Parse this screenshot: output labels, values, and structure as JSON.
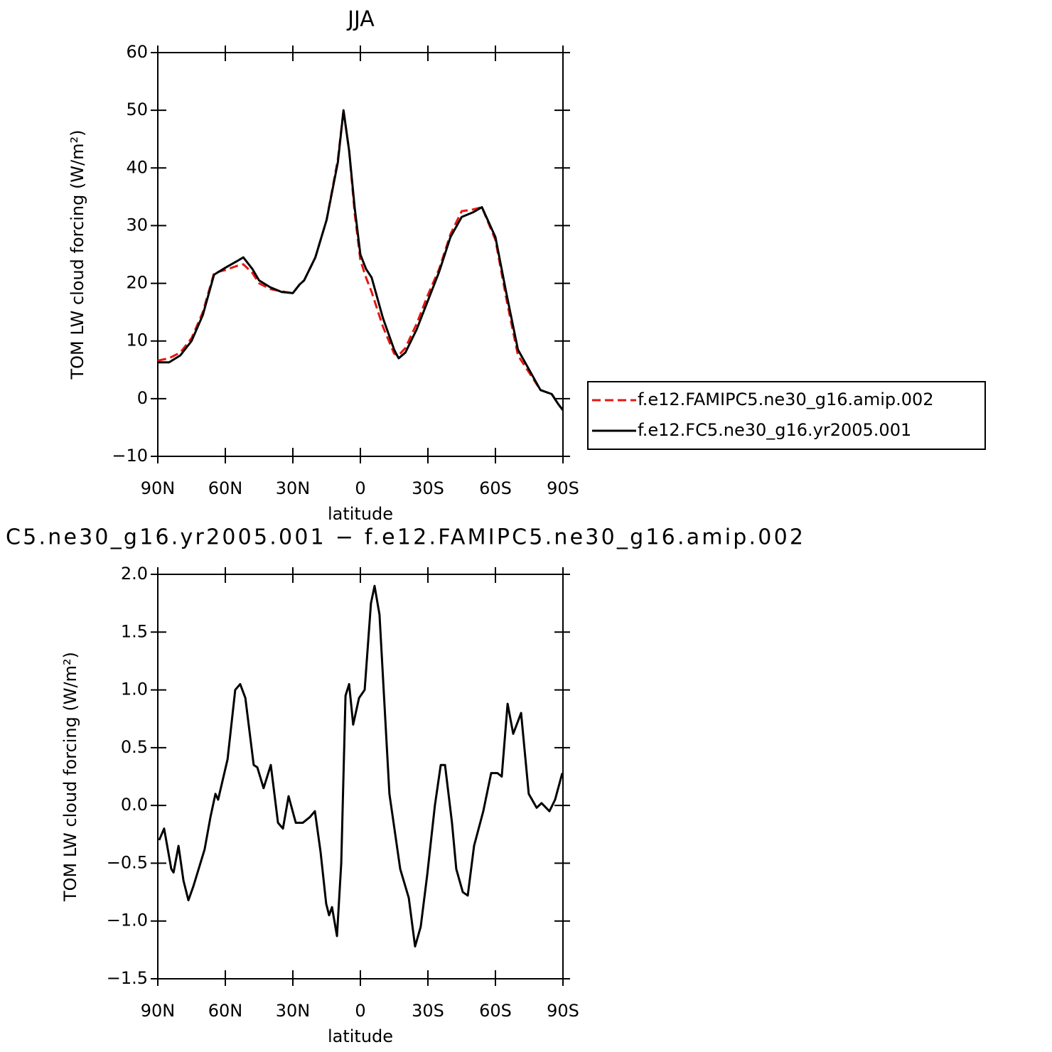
{
  "chart_data": [
    {
      "type": "line",
      "title": "JJA",
      "x_label": "latitude",
      "y_label": "TOM LW cloud forcing (W/m²)",
      "xlim": [
        90,
        -90
      ],
      "xticks": [
        {
          "value": 90,
          "label": "90N"
        },
        {
          "value": 60,
          "label": "60N"
        },
        {
          "value": 30,
          "label": "30N"
        },
        0,
        {
          "value": -30,
          "label": "30S"
        },
        {
          "value": -60,
          "label": "60S"
        },
        {
          "value": -90,
          "label": "90S"
        }
      ],
      "ylim": [
        -10,
        60
      ],
      "yticks": [
        {
          "value": -10,
          "label": "−10"
        },
        0,
        10,
        20,
        30,
        40,
        50,
        60
      ],
      "legend": "right",
      "x": [
        90,
        85,
        80,
        75,
        70,
        65,
        60,
        55,
        52,
        48,
        45,
        40,
        35,
        30,
        27,
        25,
        20,
        15,
        10,
        7.5,
        5,
        2.5,
        0,
        -2.5,
        -5,
        -10,
        -15,
        -17,
        -20,
        -25,
        -30,
        -35,
        -40,
        -45,
        -50,
        -54,
        -60,
        -65,
        -70,
        -75,
        -80,
        -85,
        -88,
        -90
      ],
      "series": [
        {
          "name": "f.e12.FAMIPC5.ne30_g16.amip.002",
          "color": "#e8150f",
          "linestyle": "dashed",
          "values": [
            6.6,
            7,
            8,
            10.5,
            15,
            21.8,
            22.3,
            23,
            23.3,
            21.8,
            20,
            19,
            18.6,
            18.3,
            19.8,
            20.5,
            24.5,
            31,
            41.5,
            50,
            43,
            32,
            24,
            21,
            18.5,
            12.5,
            7.8,
            7.5,
            8.8,
            13,
            18,
            22.5,
            28.5,
            32.5,
            32.8,
            33.2,
            27.5,
            17,
            7.5,
            4.5,
            1.5,
            0.8,
            -1,
            -2
          ]
        },
        {
          "name": "f.e12.FC5.ne30_g16.yr2005.001",
          "color": "#000000",
          "linestyle": "solid",
          "values": [
            6.3,
            6.3,
            7.5,
            10,
            14.5,
            21.5,
            22.7,
            23.8,
            24.5,
            22.5,
            20.5,
            19.3,
            18.5,
            18.3,
            19.8,
            20.5,
            24.5,
            31,
            41,
            50,
            43,
            33,
            25,
            22.5,
            21,
            14,
            8.5,
            7,
            8,
            12,
            17,
            22,
            28,
            31.5,
            32.3,
            33.2,
            28,
            18,
            8.5,
            5,
            1.5,
            0.8,
            -1,
            -2
          ]
        }
      ]
    },
    {
      "type": "line",
      "title": "C5.ne30_g16.yr2005.001 − f.e12.FAMIPC5.ne30_g16.amip.002",
      "x_label": "latitude",
      "y_label": "TOM LW cloud forcing (W/m²)",
      "xlim": [
        90,
        -90
      ],
      "xticks": [
        {
          "value": 90,
          "label": "90N"
        },
        {
          "value": 60,
          "label": "60N"
        },
        {
          "value": 30,
          "label": "30N"
        },
        0,
        {
          "value": -30,
          "label": "30S"
        },
        {
          "value": -60,
          "label": "60S"
        },
        {
          "value": -90,
          "label": "90S"
        }
      ],
      "ylim": [
        -1.5,
        2.0
      ],
      "yticks": [
        {
          "value": -1.5,
          "label": "−1.5"
        },
        {
          "value": -1.0,
          "label": "−1.0"
        },
        {
          "value": -0.5,
          "label": "−0.5"
        },
        {
          "value": 0,
          "label": "0.0"
        },
        0.5,
        {
          "value": 1.0,
          "label": "1.0"
        },
        1.5,
        {
          "value": 2.0,
          "label": "2.0"
        }
      ],
      "x": [
        89.4,
        87.2,
        84,
        83,
        80.8,
        78.6,
        76.4,
        74.2,
        69.2,
        66.6,
        64.4,
        63.2,
        59,
        55.6,
        53.4,
        51.1,
        47.4,
        45.8,
        43,
        39.8,
        36.6,
        34.4,
        31.9,
        28.7,
        25.6,
        22.4,
        20.2,
        17.7,
        15.2,
        13.9,
        12.6,
        10.4,
        8.5,
        6.6,
        5,
        3.2,
        0.6,
        -1.9,
        -4.7,
        -6.3,
        -8.5,
        -12.9,
        -17.7,
        -21.5,
        -24.3,
        -26.8,
        -29.7,
        -33.1,
        -35.7,
        -37.6,
        -40.7,
        -42.6,
        -45.5,
        -47.7,
        -50.5,
        -54.6,
        -58.1,
        -60.9,
        -62.8,
        -65.4,
        -67.9,
        -71.4,
        -74.8,
        -78.3,
        -80.5,
        -84,
        -86.5,
        -89.7
      ],
      "series": [
        {
          "color": "#000000",
          "linestyle": "solid",
          "values": [
            -0.3,
            -0.2,
            -0.55,
            -0.58,
            -0.35,
            -0.65,
            -0.82,
            -0.7,
            -0.38,
            -0.1,
            0.1,
            0.05,
            0.4,
            1.0,
            1.05,
            0.93,
            0.35,
            0.33,
            0.15,
            0.35,
            -0.15,
            -0.2,
            0.08,
            -0.15,
            -0.15,
            -0.1,
            -0.05,
            -0.4,
            -0.85,
            -0.95,
            -0.88,
            -1.13,
            -0.5,
            0.95,
            1.05,
            0.7,
            0.93,
            1.0,
            1.75,
            1.9,
            1.65,
            0.1,
            -0.55,
            -0.8,
            -1.22,
            -1.05,
            -0.6,
            0,
            0.35,
            0.35,
            -0.15,
            -0.55,
            -0.75,
            -0.78,
            -0.35,
            -0.05,
            0.28,
            0.28,
            0.25,
            0.88,
            0.62,
            0.8,
            0.1,
            -0.02,
            0.02,
            -0.05,
            0.05,
            0.28
          ]
        }
      ]
    }
  ]
}
